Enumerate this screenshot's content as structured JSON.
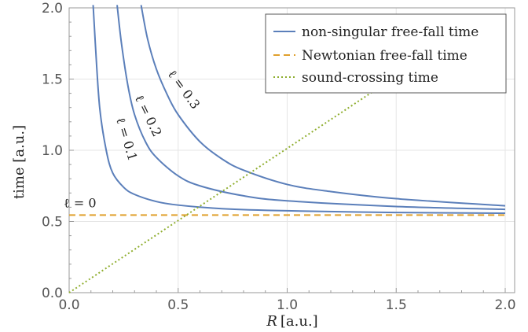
{
  "chart_data": {
    "type": "line",
    "xlabel_var": "R",
    "xlabel_unit": "[a.u.]",
    "ylabel": "time [a.u.]",
    "xlim": [
      0,
      2.0
    ],
    "ylim": [
      0,
      2.0
    ],
    "xticks": [
      "0.0",
      "0.5",
      "1.0",
      "1.5",
      "2.0"
    ],
    "yticks": [
      "0.0",
      "0.5",
      "1.0",
      "1.5",
      "2.0"
    ],
    "grid": true,
    "legend_position": "top-right",
    "legend": [
      {
        "label": "non-singular free-fall time",
        "style": "solid",
        "color": "#5b7fba"
      },
      {
        "label": "Newtonian free-fall time",
        "style": "dashed",
        "color": "#e0a02d"
      },
      {
        "label": "sound-crossing time",
        "style": "dotted",
        "color": "#8fae2f"
      }
    ],
    "series": [
      {
        "annotation": "ℓ = 0.1",
        "kind": "non-singular",
        "points": [
          [
            0.11,
            2.02
          ],
          [
            0.12,
            1.75
          ],
          [
            0.14,
            1.3
          ],
          [
            0.17,
            1.0
          ],
          [
            0.2,
            0.84
          ],
          [
            0.25,
            0.74
          ],
          [
            0.3,
            0.69
          ],
          [
            0.4,
            0.64
          ],
          [
            0.5,
            0.615
          ],
          [
            0.7,
            0.59
          ],
          [
            1.0,
            0.575
          ],
          [
            1.5,
            0.563
          ],
          [
            2.0,
            0.558
          ]
        ]
      },
      {
        "annotation": "ℓ = 0.2",
        "kind": "non-singular",
        "points": [
          [
            0.22,
            2.02
          ],
          [
            0.24,
            1.75
          ],
          [
            0.27,
            1.45
          ],
          [
            0.3,
            1.25
          ],
          [
            0.35,
            1.06
          ],
          [
            0.4,
            0.95
          ],
          [
            0.5,
            0.82
          ],
          [
            0.6,
            0.75
          ],
          [
            0.8,
            0.68
          ],
          [
            1.0,
            0.645
          ],
          [
            1.5,
            0.605
          ],
          [
            2.0,
            0.585
          ]
        ]
      },
      {
        "annotation": "ℓ = 0.3",
        "kind": "non-singular",
        "points": [
          [
            0.33,
            2.02
          ],
          [
            0.36,
            1.78
          ],
          [
            0.4,
            1.57
          ],
          [
            0.45,
            1.39
          ],
          [
            0.5,
            1.25
          ],
          [
            0.6,
            1.06
          ],
          [
            0.7,
            0.94
          ],
          [
            0.8,
            0.86
          ],
          [
            1.0,
            0.76
          ],
          [
            1.2,
            0.71
          ],
          [
            1.5,
            0.66
          ],
          [
            2.0,
            0.61
          ]
        ]
      },
      {
        "annotation": "ℓ = 0",
        "kind": "Newtonian",
        "points": [
          [
            0.0,
            0.545
          ],
          [
            2.0,
            0.545
          ]
        ]
      },
      {
        "kind": "sound-crossing",
        "points": [
          [
            0.0,
            0.0
          ],
          [
            1.5,
            1.52
          ]
        ]
      }
    ]
  }
}
